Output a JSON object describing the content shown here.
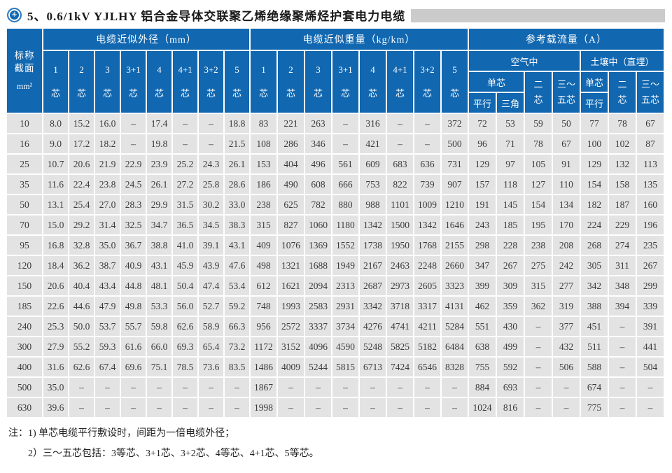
{
  "colors": {
    "header_blue": "#1167b0",
    "cell_gray": "#e3e3e3",
    "title_bar_gray": "#cbcbcb"
  },
  "title": {
    "icon_glyph": "✳",
    "text": "5、0.6/1kV YJLHY 铝合金导体交联聚乙烯绝缘聚烯烃护套电力电缆"
  },
  "table": {
    "corner": {
      "line1": "标称",
      "line2": "截面",
      "unit": "mm²"
    },
    "groups": {
      "diameter": "电缆近似外径（mm）",
      "weight": "电缆近似重量（kg/km）",
      "ampacity": "参考载流量（A）"
    },
    "core_cols": [
      "1",
      "2",
      "3",
      "3+1",
      "4",
      "4+1",
      "3+2",
      "5"
    ],
    "core_suffix": "芯",
    "ampacity": {
      "air_label": "空气中",
      "soil_label": "土壤中（直埋）",
      "single": "单芯",
      "parallel": "平行",
      "triangle": "三角",
      "two_core": [
        "二",
        "芯"
      ],
      "three_five": [
        "三～",
        "五芯"
      ]
    },
    "rows": [
      {
        "size": "10",
        "d": [
          "8.0",
          "15.2",
          "16.0",
          "–",
          "17.4",
          "–",
          "–",
          "18.8"
        ],
        "w": [
          "83",
          "221",
          "263",
          "–",
          "316",
          "–",
          "–",
          "372"
        ],
        "a": [
          "72",
          "53",
          "59",
          "50",
          "77",
          "78",
          "67"
        ]
      },
      {
        "size": "16",
        "d": [
          "9.0",
          "17.2",
          "18.2",
          "–",
          "19.8",
          "–",
          "–",
          "21.5"
        ],
        "w": [
          "108",
          "286",
          "346",
          "–",
          "421",
          "–",
          "–",
          "500"
        ],
        "a": [
          "96",
          "71",
          "78",
          "67",
          "100",
          "102",
          "87"
        ]
      },
      {
        "size": "25",
        "d": [
          "10.7",
          "20.6",
          "21.9",
          "22.9",
          "23.9",
          "25.2",
          "24.3",
          "26.1"
        ],
        "w": [
          "153",
          "404",
          "496",
          "561",
          "609",
          "683",
          "636",
          "731"
        ],
        "a": [
          "129",
          "97",
          "105",
          "91",
          "129",
          "132",
          "113"
        ]
      },
      {
        "size": "35",
        "d": [
          "11.6",
          "22.4",
          "23.8",
          "24.5",
          "26.1",
          "27.2",
          "25.8",
          "28.6"
        ],
        "w": [
          "186",
          "490",
          "608",
          "666",
          "753",
          "822",
          "739",
          "907"
        ],
        "a": [
          "157",
          "118",
          "127",
          "110",
          "154",
          "158",
          "135"
        ]
      },
      {
        "size": "50",
        "d": [
          "13.1",
          "25.4",
          "27.0",
          "28.3",
          "29.9",
          "31.5",
          "30.2",
          "33.0"
        ],
        "w": [
          "238",
          "625",
          "782",
          "880",
          "988",
          "1101",
          "1009",
          "1210"
        ],
        "a": [
          "191",
          "145",
          "154",
          "134",
          "182",
          "187",
          "160"
        ]
      },
      {
        "size": "70",
        "d": [
          "15.0",
          "29.2",
          "31.4",
          "32.5",
          "34.7",
          "36.5",
          "34.5",
          "38.3"
        ],
        "w": [
          "315",
          "827",
          "1060",
          "1180",
          "1342",
          "1500",
          "1342",
          "1646"
        ],
        "a": [
          "243",
          "185",
          "195",
          "170",
          "224",
          "229",
          "196"
        ]
      },
      {
        "size": "95",
        "d": [
          "16.8",
          "32.8",
          "35.0",
          "36.7",
          "38.8",
          "41.0",
          "39.1",
          "43.1"
        ],
        "w": [
          "409",
          "1076",
          "1369",
          "1552",
          "1738",
          "1950",
          "1768",
          "2155"
        ],
        "a": [
          "298",
          "228",
          "238",
          "208",
          "268",
          "274",
          "235"
        ]
      },
      {
        "size": "120",
        "d": [
          "18.4",
          "36.2",
          "38.7",
          "40.9",
          "43.1",
          "45.9",
          "43.9",
          "47.6"
        ],
        "w": [
          "498",
          "1321",
          "1688",
          "1949",
          "2167",
          "2463",
          "2248",
          "2660"
        ],
        "a": [
          "347",
          "267",
          "275",
          "242",
          "305",
          "311",
          "267"
        ]
      },
      {
        "size": "150",
        "d": [
          "20.6",
          "40.4",
          "43.4",
          "44.8",
          "48.1",
          "50.4",
          "47.4",
          "53.4"
        ],
        "w": [
          "612",
          "1621",
          "2094",
          "2313",
          "2687",
          "2973",
          "2605",
          "3323"
        ],
        "a": [
          "399",
          "309",
          "315",
          "277",
          "342",
          "348",
          "299"
        ]
      },
      {
        "size": "185",
        "d": [
          "22.6",
          "44.6",
          "47.9",
          "49.8",
          "53.3",
          "56.0",
          "52.7",
          "59.2"
        ],
        "w": [
          "748",
          "1993",
          "2583",
          "2931",
          "3342",
          "3718",
          "3317",
          "4131"
        ],
        "a": [
          "462",
          "359",
          "362",
          "319",
          "388",
          "394",
          "339"
        ]
      },
      {
        "size": "240",
        "d": [
          "25.3",
          "50.0",
          "53.7",
          "55.7",
          "59.8",
          "62.6",
          "58.9",
          "66.3"
        ],
        "w": [
          "956",
          "2572",
          "3337",
          "3734",
          "4276",
          "4741",
          "4211",
          "5284"
        ],
        "a": [
          "551",
          "430",
          "–",
          "377",
          "451",
          "–",
          "391"
        ]
      },
      {
        "size": "300",
        "d": [
          "27.9",
          "55.2",
          "59.3",
          "61.6",
          "66.0",
          "69.3",
          "65.4",
          "73.2"
        ],
        "w": [
          "1172",
          "3152",
          "4096",
          "4590",
          "5248",
          "5825",
          "5182",
          "6484"
        ],
        "a": [
          "638",
          "499",
          "–",
          "432",
          "511",
          "–",
          "441"
        ]
      },
      {
        "size": "400",
        "d": [
          "31.6",
          "62.6",
          "67.4",
          "69.6",
          "75.1",
          "78.5",
          "73.6",
          "83.5"
        ],
        "w": [
          "1486",
          "4009",
          "5244",
          "5815",
          "6713",
          "7424",
          "6546",
          "8328"
        ],
        "a": [
          "755",
          "592",
          "–",
          "506",
          "588",
          "–",
          "504"
        ]
      },
      {
        "size": "500",
        "d": [
          "35.0",
          "–",
          "–",
          "–",
          "–",
          "–",
          "–",
          "–"
        ],
        "w": [
          "1867",
          "–",
          "–",
          "–",
          "–",
          "–",
          "–",
          "–"
        ],
        "a": [
          "884",
          "693",
          "–",
          "–",
          "674",
          "–",
          "–"
        ]
      },
      {
        "size": "630",
        "d": [
          "39.6",
          "–",
          "–",
          "–",
          "–",
          "–",
          "–",
          "–"
        ],
        "w": [
          "1998",
          "–",
          "–",
          "–",
          "–",
          "–",
          "–",
          "–"
        ],
        "a": [
          "1024",
          "816",
          "–",
          "–",
          "775",
          "–",
          "–"
        ]
      }
    ]
  },
  "notes": [
    "注：1) 单芯电缆平行敷设时，间距为一倍电缆外径；",
    "2）三～五芯包括：3等芯、3+1芯、3+2芯、4等芯、4+1芯、5等芯。"
  ]
}
